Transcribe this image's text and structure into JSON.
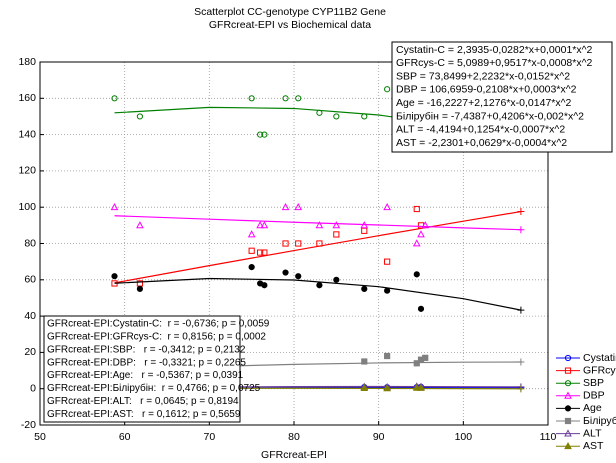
{
  "chart_data": {
    "type": "scatter",
    "title": "Scatterplot CC-genotype CYP11B2 Gene",
    "subtitle": "GFRcreat-EPI vs Biochemical data",
    "x_label": "GFRcreat-EPI",
    "xlim": [
      50,
      110
    ],
    "xticks": [
      50,
      60,
      70,
      80,
      90,
      100,
      110
    ],
    "ylim": [
      -20,
      180
    ],
    "yticks": [
      -20,
      0,
      20,
      40,
      60,
      80,
      100,
      120,
      140,
      160,
      180
    ],
    "grid": true,
    "legend": "lower right",
    "fit_x": [
      58.8,
      70,
      80,
      90,
      100,
      106.8
    ],
    "series": [
      {
        "name": "Cystatin-C",
        "color": "#0000ff",
        "marker": "circle-open",
        "x": [
          88.3,
          91,
          94.5,
          95
        ],
        "values": [
          0.9,
          0.8,
          0.9,
          1.0
        ],
        "fit": [
          1.08,
          0.91,
          0.77,
          0.66,
          0.57,
          0.52
        ]
      },
      {
        "name": "GFRcys-C",
        "color": "#ff0000",
        "marker": "square-open",
        "x": [
          58.8,
          61.8,
          75,
          76,
          76.5,
          79,
          80.5,
          83,
          85,
          88.3,
          91,
          94.5,
          95
        ],
        "values": [
          58,
          58,
          76,
          75,
          75,
          80,
          80,
          80,
          85,
          87,
          70,
          99,
          90
        ],
        "fit": [
          58.3,
          67.8,
          76.1,
          84.3,
          92.3,
          97.6
        ]
      },
      {
        "name": "SBP",
        "color": "#008000",
        "marker": "circle-open",
        "x": [
          58.8,
          61.8,
          75,
          76,
          76.5,
          79,
          80.5,
          83,
          85,
          88.3,
          91
        ],
        "values": [
          160,
          150,
          160,
          140,
          140,
          160,
          160,
          152,
          150,
          150,
          165
        ],
        "fit": [
          152.0,
          155.0,
          154.4,
          150.8,
          144.2,
          137.9
        ]
      },
      {
        "name": "DBP",
        "color": "#ff00ff",
        "marker": "triangle-open",
        "x": [
          58.8,
          61.8,
          75,
          76,
          76.5,
          79,
          80.5,
          83,
          85,
          88.3,
          91,
          94.5,
          95,
          95.5
        ],
        "values": [
          100,
          90,
          85,
          90,
          90,
          100,
          100,
          90,
          90,
          90,
          100,
          80,
          85,
          90
        ],
        "fit": [
          95.3,
          93.4,
          91.7,
          90.2,
          88.6,
          87.6
        ]
      },
      {
        "name": "Age",
        "color": "#000000",
        "marker": "circle",
        "x": [
          58.8,
          61.8,
          75,
          76,
          76.5,
          79,
          80.5,
          83,
          85,
          88.3,
          91,
          94.5,
          95
        ],
        "values": [
          62,
          55,
          67,
          58,
          57,
          64,
          62,
          57,
          60,
          55,
          54,
          63,
          44
        ],
        "fit": [
          58.1,
          60.7,
          59.9,
          56.2,
          49.6,
          43.3
        ]
      },
      {
        "name": "Білірубін",
        "color": "#808080",
        "marker": "square",
        "x": [
          88.3,
          91,
          94.5,
          95,
          95.5
        ],
        "values": [
          15,
          18,
          14,
          16,
          17
        ],
        "fit": [
          10.4,
          12.2,
          13.4,
          14.2,
          14.6,
          14.7
        ]
      },
      {
        "name": "ALT",
        "color": "#6a3d9a",
        "marker": "triangle-open",
        "x": [
          88.3,
          91,
          94.5,
          95
        ],
        "values": [
          1.0,
          0.8,
          1.2,
          1.0
        ],
        "fit": [
          0.53,
          0.93,
          1.13,
          1.2,
          1.12,
          0.99
        ]
      },
      {
        "name": "AST",
        "color": "#808000",
        "marker": "triangle",
        "x": [
          88.3,
          91,
          94.5,
          95
        ],
        "values": [
          0.3,
          0.2,
          0.5,
          0.4
        ],
        "fit": [
          0.08,
          0.21,
          0.24,
          0.19,
          0.06,
          -0.07
        ]
      }
    ],
    "equations": [
      "Cystatin-C = 2,3935-0,0282*x+0,0001*x^2",
      "GFRcys-C = 5,0989+0,9517*x-0,0008*x^2",
      "SBP = 73,8499+2,2232*x-0,0152*x^2",
      "DBP = 106,6959-0,2108*x+0,0003*x^2",
      "Age = -16,2227+2,1276*x-0,0147*x^2",
      "Білірубін = -7,4387+0,4206*x-0,002*x^2",
      "ALT = -4,4194+0,1254*x-0,0007*x^2",
      "AST = -2,2301+0,0629*x-0,0004*x^2"
    ],
    "correlations": [
      "GFRcreat-EPI:Cystatin-C:  r = -0,6736; p = 0,0059",
      "GFRcreat-EPI:GFRcys-C:  r = 0,8156; p = 0,0002",
      "GFRcreat-EPI:SBP:   r = -0,3412; p = 0,2132",
      "GFRcreat-EPI:DBP:   r = -0,3321; p = 0,2265",
      "GFRcreat-EPI:Age:   r = -0,5367; p = 0,0391",
      "GFRcreat-EPI:Білірубін:  r = 0,4766; p = 0,0725",
      "GFRcreat-EPI:ALT:   r = 0,0645; p = 0,8194",
      "GFRcreat-EPI:AST:   r = 0,1612; p = 0,5659"
    ]
  }
}
